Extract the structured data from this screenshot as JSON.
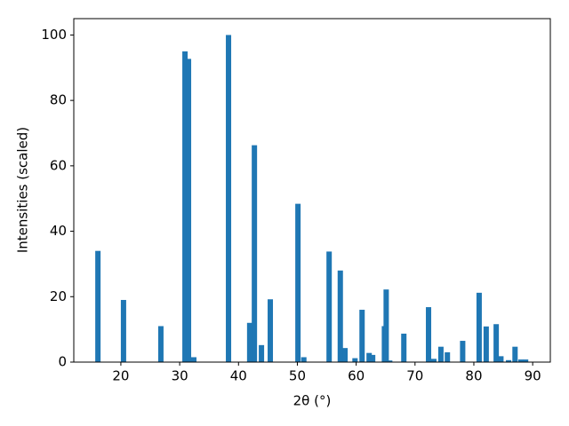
{
  "chart_data": {
    "type": "bar",
    "x_label": "2θ (°)",
    "y_label": "Intensities (scaled)",
    "x": [
      16.1,
      20.45,
      26.8,
      30.9,
      31.5,
      32.4,
      38.3,
      41.9,
      42.7,
      43.9,
      45.4,
      50.1,
      51.1,
      55.4,
      57.3,
      58.1,
      59.8,
      61.0,
      62.2,
      62.8,
      64.8,
      65.1,
      65.7,
      68.1,
      72.3,
      73.2,
      74.4,
      75.5,
      78.1,
      80.9,
      82.1,
      83.8,
      84.6,
      85.9,
      87.0,
      88.0,
      88.8
    ],
    "values": [
      34,
      19,
      11,
      95,
      92.7,
      1.5,
      100,
      12,
      66.3,
      5.2,
      19.2,
      48.4,
      1.5,
      33.8,
      28,
      4.3,
      1.2,
      16,
      2.8,
      2.2,
      11,
      22.2,
      0.5,
      8.7,
      16.8,
      1,
      4.7,
      3,
      6.5,
      21.2,
      10.9,
      11.6,
      1.8,
      0.6,
      4.7,
      0.8,
      0.8
    ],
    "color": "#1f77b4",
    "xlim": [
      12,
      93
    ],
    "xticks": [
      20,
      30,
      40,
      50,
      60,
      70,
      80,
      90
    ],
    "ylim": [
      0,
      105
    ],
    "yticks": [
      0,
      20,
      40,
      60,
      80,
      100
    ],
    "grid": false
  }
}
